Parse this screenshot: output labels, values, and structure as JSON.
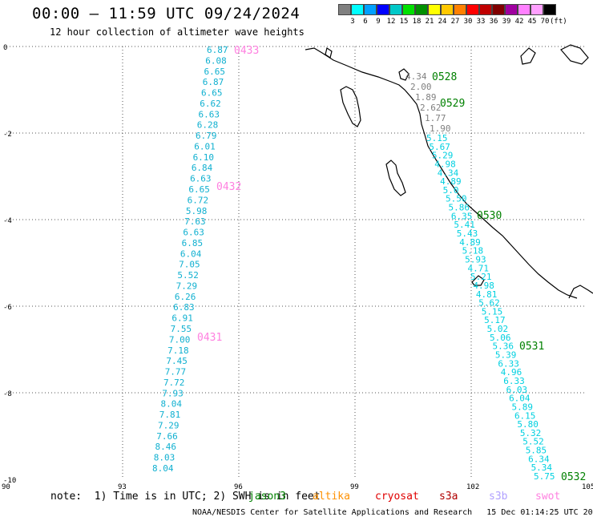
{
  "header": {
    "title": "00:00 – 11:59 UTC 09/24/2024",
    "subtitle": "12 hour collection of altimeter wave heights"
  },
  "legend": {
    "colors": [
      "#808080",
      "#00ffff",
      "#00a0ff",
      "#0000ff",
      "#00c8c8",
      "#00e000",
      "#009000",
      "#ffff00",
      "#ffc800",
      "#ff8000",
      "#ff0000",
      "#c00000",
      "#800000",
      "#a000a0",
      "#ff80ff",
      "#ffa0ff",
      "#000000"
    ],
    "labels": [
      "3",
      "6",
      "9",
      "12",
      "15",
      "18",
      "21",
      "24",
      "27",
      "30",
      "33",
      "36",
      "39",
      "42",
      "45",
      "70",
      "(ft)"
    ]
  },
  "axes": {
    "lat_labels": [
      "0",
      "-2",
      "-4",
      "-6",
      "-8",
      "-10"
    ],
    "lon_labels": [
      "90",
      "93",
      "96",
      "99",
      "102",
      "105"
    ]
  },
  "passes": [
    {
      "id": "0433",
      "color": "#ff80e0"
    },
    {
      "id": "0432",
      "color": "#ff80e0"
    },
    {
      "id": "0431",
      "color": "#ff80e0"
    },
    {
      "id": "0528",
      "color": "#008000"
    },
    {
      "id": "0529",
      "color": "#008000"
    },
    {
      "id": "0530",
      "color": "#008000"
    },
    {
      "id": "0531",
      "color": "#008000"
    },
    {
      "id": "0532",
      "color": "#008000"
    }
  ],
  "track_west": [
    "6.87",
    "6.08",
    "6.65",
    "6.87",
    "6.65",
    "6.62",
    "6.63",
    "6.28",
    "6.79",
    "6.01",
    "6.10",
    "6.84",
    "6.63",
    "6.65",
    "6.72",
    "5.98",
    "7.63",
    "6.63",
    "6.85",
    "6.04",
    "7.05",
    "5.52",
    "7.29",
    "6.26",
    "6.83",
    "6.91",
    "7.55",
    "7.00",
    "7.18",
    "7.45",
    "7.77",
    "7.72",
    "7.93",
    "8.04",
    "7.81",
    "7.29",
    "7.66",
    "8.46",
    "8.03",
    "8.04"
  ],
  "track_east_gray": [
    "4.34",
    "2.00",
    "1.89",
    "2.62",
    "1.77",
    "1.90"
  ],
  "track_east": [
    "5.15",
    "5.67",
    "5.29",
    "4.98",
    "4.34",
    "4.89",
    "5.0",
    "5.50",
    "5.86",
    "6.35",
    "5.41",
    "5.43",
    "4.89",
    "5.18",
    "5.93",
    "4.71",
    "5.21",
    "4.98",
    "4.81",
    "5.62",
    "5.15",
    "5.17",
    "5.02",
    "5.06",
    "5.36",
    "5.39",
    "6.33",
    "4.96",
    "6.33",
    "6.03",
    "6.04",
    "5.89",
    "6.15",
    "5.80",
    "5.32",
    "5.52",
    "5.85",
    "6.34",
    "5.34",
    "5.75"
  ],
  "footer": {
    "note": "note:  1) Time is in UTC; 2) SWH is in feet",
    "satellites": [
      {
        "name": "jason3",
        "color": "#008000"
      },
      {
        "name": "altika",
        "color": "#ff9000"
      },
      {
        "name": "cryosat",
        "color": "#e00000"
      },
      {
        "name": "s3a",
        "color": "#b00000"
      },
      {
        "name": "s3b",
        "color": "#b0a0ff"
      },
      {
        "name": "swot",
        "color": "#ff80e0"
      }
    ],
    "credit": "NOAA/NESDIS Center for Satellite Applications and Research   15 Dec 01:14:25 UTC 2024"
  }
}
